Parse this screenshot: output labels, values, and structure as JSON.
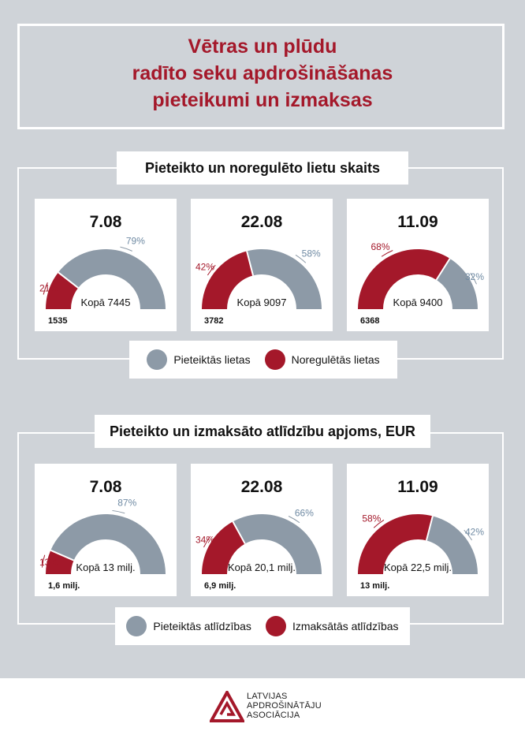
{
  "title": [
    "Vētras un plūdu",
    "radīto seku apdrošināšanas",
    "pieteikumi un izmaksas"
  ],
  "colors": {
    "reported": "#8d9aa7",
    "settled": "#a4182a",
    "accent": "#a4182a"
  },
  "chart_data": [
    {
      "type": "gauge",
      "title": "Pieteikto un noregulēto lietu skaits",
      "legend": [
        "Pieteiktās lietas",
        "Noregulētās lietas"
      ],
      "panels": [
        {
          "date": "7.08",
          "total_label": "Kopā 7445",
          "settled_pct": 21,
          "reported_pct": 79,
          "settled_pct_label": "21%",
          "reported_pct_label": "79%",
          "settled_value_label": "1535"
        },
        {
          "date": "22.08",
          "total_label": "Kopā 9097",
          "settled_pct": 42,
          "reported_pct": 58,
          "settled_pct_label": "42%",
          "reported_pct_label": "58%",
          "settled_value_label": "3782"
        },
        {
          "date": "11.09",
          "total_label": "Kopā 9400",
          "settled_pct": 68,
          "reported_pct": 32,
          "settled_pct_label": "68%",
          "reported_pct_label": "32%",
          "settled_value_label": "6368"
        }
      ]
    },
    {
      "type": "gauge",
      "title": "Pieteikto un izmaksāto atlīdzību apjoms, EUR",
      "legend": [
        "Pieteiktās atlīdzības",
        "Izmaksātās atlīdzības"
      ],
      "panels": [
        {
          "date": "7.08",
          "total_label": "Kopā 13 milj.",
          "settled_pct": 13,
          "reported_pct": 87,
          "settled_pct_label": "13%",
          "reported_pct_label": "87%",
          "settled_value_label": "1,6 milj."
        },
        {
          "date": "22.08",
          "total_label": "Kopā 20,1 milj.",
          "settled_pct": 34,
          "reported_pct": 66,
          "settled_pct_label": "34%",
          "reported_pct_label": "66%",
          "settled_value_label": "6,9 milj."
        },
        {
          "date": "11.09",
          "total_label": "Kopā 22,5 milj.",
          "settled_pct": 58,
          "reported_pct": 42,
          "settled_pct_label": "58%",
          "reported_pct_label": "42%",
          "settled_value_label": "13 milj."
        }
      ]
    }
  ],
  "footer": {
    "logo_lines": [
      "LATVIJAS",
      "APDROŠINĀTĀJU",
      "ASOCIĀCIJA"
    ]
  }
}
